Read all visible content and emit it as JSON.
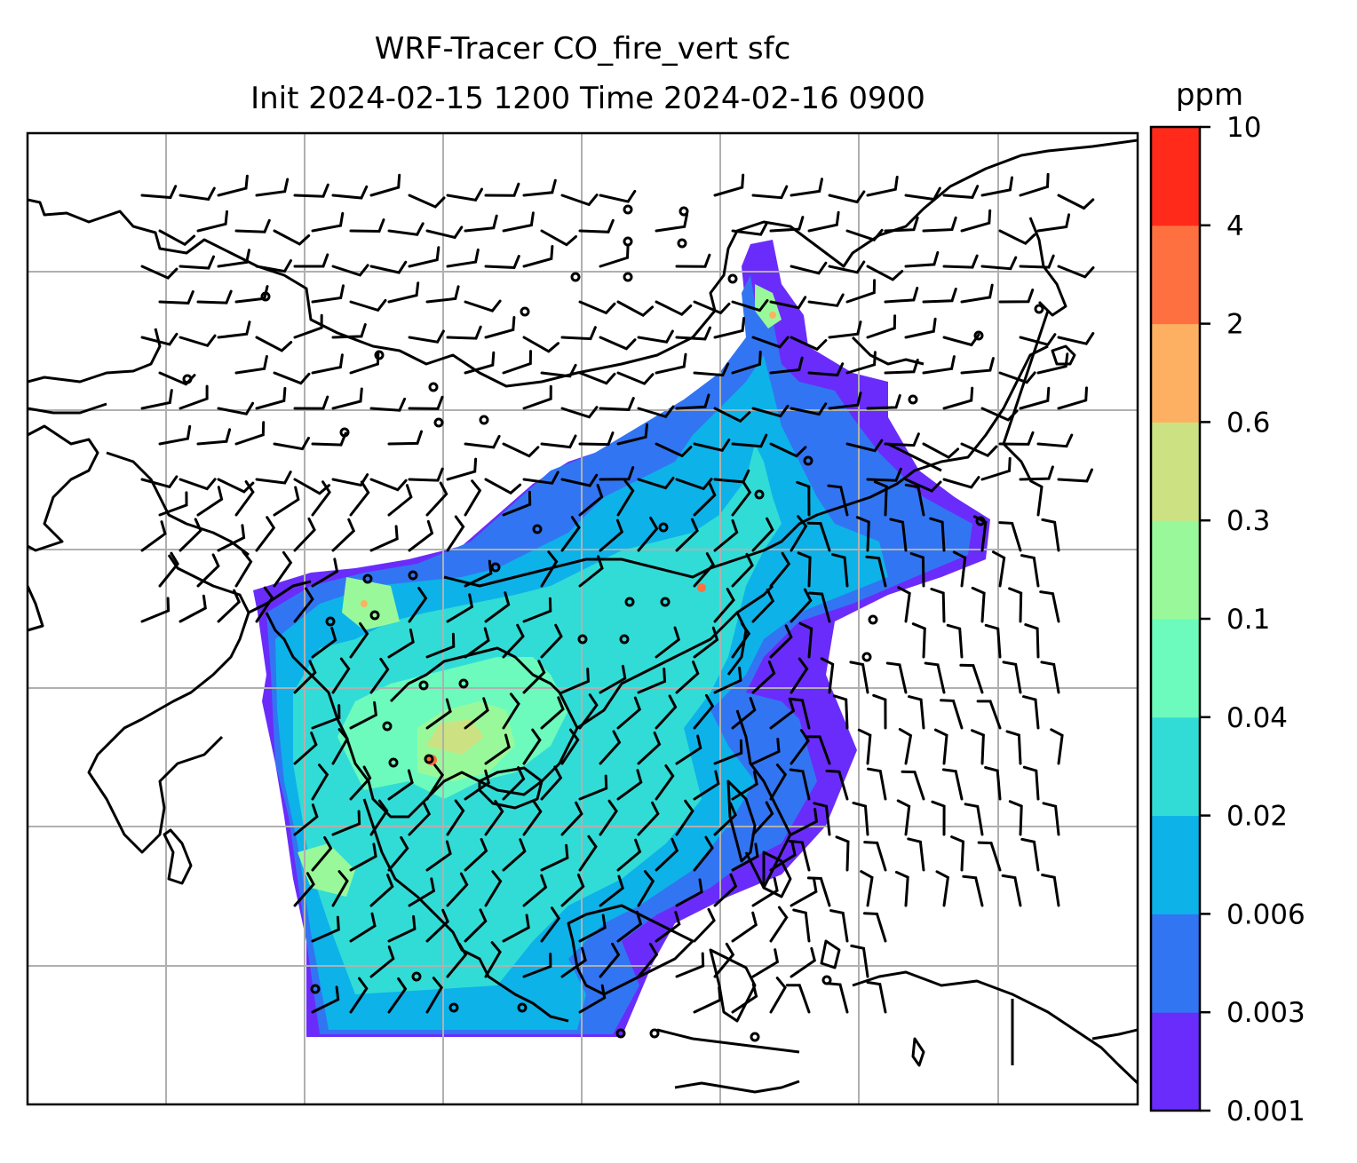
{
  "chart_data": {
    "type": "heatmap",
    "title_line1": "WRF-Tracer CO_fire_vert sfc",
    "title_line2": "Init 2024-02-15 1200 Time 2024-02-16 0900",
    "colorbar": {
      "units": "ppm",
      "levels": [
        "0.001",
        "0.003",
        "0.006",
        "0.02",
        "0.04",
        "0.1",
        "0.3",
        "0.6",
        "2",
        "4",
        "10"
      ],
      "colors": [
        "#6a2cfa",
        "#3275f2",
        "#0db2e9",
        "#32dcd6",
        "#6cfbbd",
        "#99f99a",
        "#cce282",
        "#feb062",
        "#ff7040",
        "#ff2a1a"
      ]
    },
    "grid": true,
    "overlays": [
      "coastlines",
      "wind barbs"
    ]
  }
}
